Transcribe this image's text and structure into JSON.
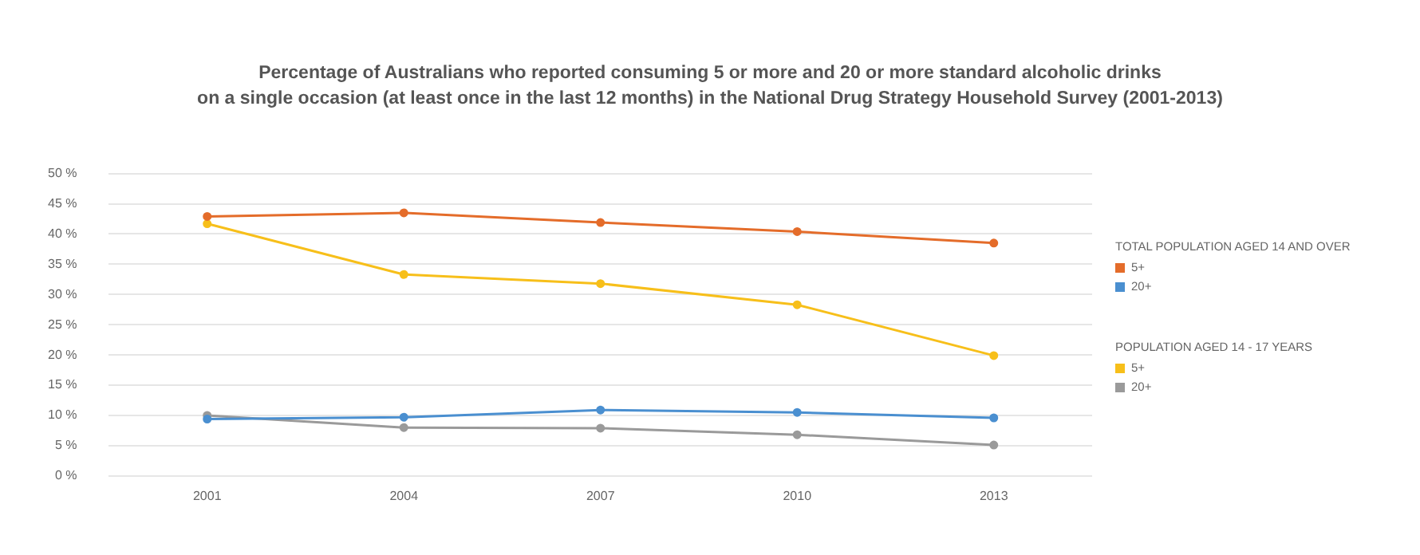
{
  "chart_data": {
    "type": "line",
    "title": "Percentage of Australians who reported consuming 5 or more and 20 or more standard alcoholic drinks\non a single occasion (at least once in the last 12 months) in the National Drug Strategy Household Survey (2001-2013)",
    "categories": [
      "2001",
      "2004",
      "2007",
      "2010",
      "2013"
    ],
    "series": [
      {
        "name": "5+",
        "color": "#e46c2a",
        "values": [
          42.9,
          43.5,
          41.9,
          40.4,
          38.5
        ]
      },
      {
        "name": "20+",
        "color": "#4a8fd0",
        "values": [
          9.4,
          9.7,
          10.9,
          10.5,
          9.6
        ]
      },
      {
        "name": "5+",
        "color": "#f7bf1a",
        "values": [
          41.7,
          33.3,
          31.8,
          28.3,
          19.9
        ]
      },
      {
        "name": "20+",
        "color": "#9a9a9a",
        "values": [
          10.0,
          8.0,
          7.9,
          6.8,
          5.1
        ]
      }
    ],
    "annotations": [
      "TOTAL POPULATION AGED 14 AND OVER",
      "POPULATION AGED 14 - 17 YEARS"
    ],
    "ylim": [
      0,
      50
    ],
    "yticks": [
      {
        "value": 0,
        "label": "0 %"
      },
      {
        "value": 5,
        "label": "5 %"
      },
      {
        "value": 10,
        "label": "10 %"
      },
      {
        "value": 15,
        "label": "15 %"
      },
      {
        "value": 20,
        "label": "20 %"
      },
      {
        "value": 25,
        "label": "25 %"
      },
      {
        "value": 30,
        "label": "30 %"
      },
      {
        "value": 35,
        "label": "35 %"
      },
      {
        "value": 40,
        "label": "40 %"
      },
      {
        "value": 45,
        "label": "45 %"
      },
      {
        "value": 50,
        "label": "50 %"
      }
    ],
    "grid": "y",
    "legend": "right",
    "marker": "circle",
    "line_style": "solid"
  }
}
